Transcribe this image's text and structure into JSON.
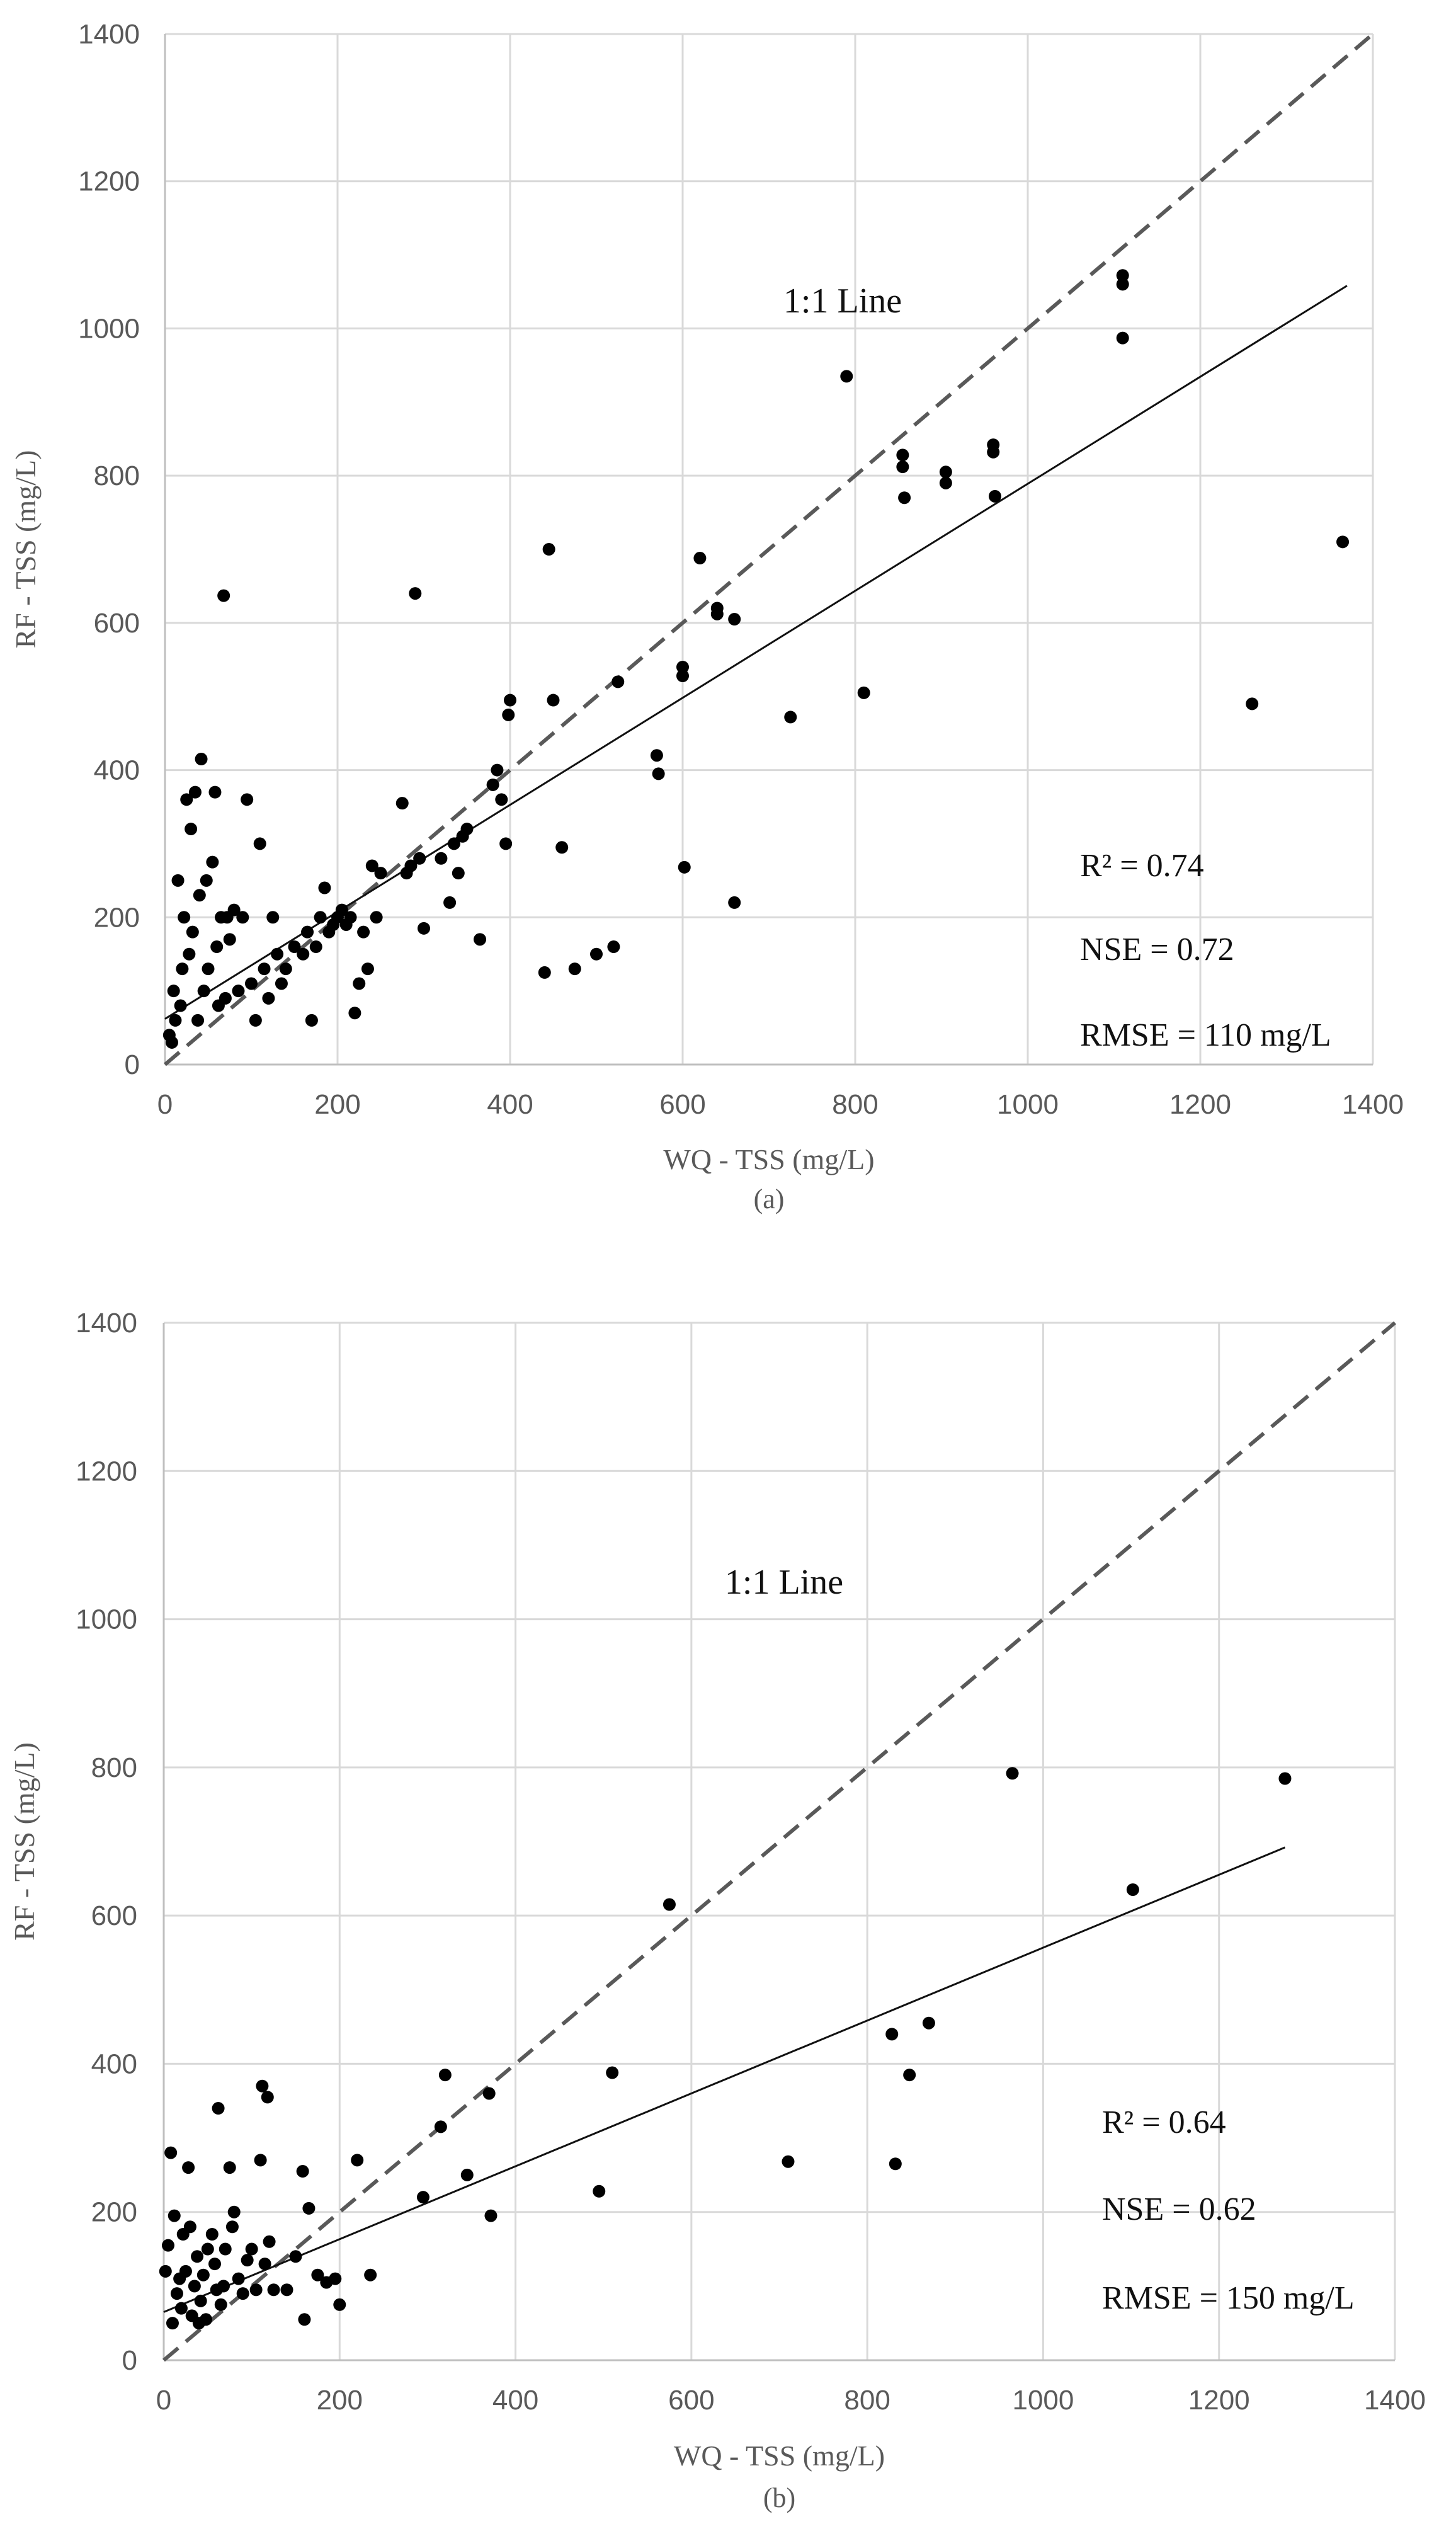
{
  "chart_data": [
    {
      "type": "scatter",
      "panel_label": "(a)",
      "xlabel": "WQ - TSS (mg/L)",
      "ylabel": "RF - TSS (mg/L)",
      "xlim": [
        0,
        1400
      ],
      "ylim": [
        0,
        1400
      ],
      "xticks": [
        0,
        200,
        400,
        600,
        800,
        1000,
        1200,
        1400
      ],
      "yticks": [
        0,
        200,
        400,
        600,
        800,
        1000,
        1200,
        1400
      ],
      "grid": true,
      "one_to_one_label": "1:1 Line",
      "one_to_one_line": {
        "x": [
          0,
          1400
        ],
        "y": [
          0,
          1400
        ],
        "style": "dashed"
      },
      "regression_line": {
        "x": [
          0,
          1370
        ],
        "y": [
          62,
          1058
        ],
        "style": "solid"
      },
      "stats": {
        "r2": "R² = 0.74",
        "nse": "NSE = 0.72",
        "rmse": "RMSE = 110 mg/L"
      },
      "points": [
        [
          5,
          40
        ],
        [
          8,
          30
        ],
        [
          10,
          100
        ],
        [
          12,
          60
        ],
        [
          15,
          250
        ],
        [
          18,
          80
        ],
        [
          20,
          130
        ],
        [
          22,
          200
        ],
        [
          25,
          360
        ],
        [
          28,
          150
        ],
        [
          30,
          320
        ],
        [
          32,
          180
        ],
        [
          35,
          370
        ],
        [
          38,
          60
        ],
        [
          40,
          230
        ],
        [
          42,
          415
        ],
        [
          45,
          100
        ],
        [
          48,
          250
        ],
        [
          50,
          130
        ],
        [
          55,
          275
        ],
        [
          58,
          370
        ],
        [
          60,
          160
        ],
        [
          62,
          80
        ],
        [
          65,
          200
        ],
        [
          68,
          637
        ],
        [
          70,
          90
        ],
        [
          72,
          200
        ],
        [
          75,
          170
        ],
        [
          80,
          210
        ],
        [
          85,
          100
        ],
        [
          90,
          200
        ],
        [
          95,
          360
        ],
        [
          100,
          110
        ],
        [
          105,
          60
        ],
        [
          110,
          300
        ],
        [
          115,
          130
        ],
        [
          120,
          90
        ],
        [
          125,
          200
        ],
        [
          130,
          150
        ],
        [
          135,
          110
        ],
        [
          140,
          130
        ],
        [
          150,
          160
        ],
        [
          160,
          150
        ],
        [
          165,
          180
        ],
        [
          170,
          60
        ],
        [
          175,
          160
        ],
        [
          180,
          200
        ],
        [
          185,
          240
        ],
        [
          190,
          180
        ],
        [
          195,
          190
        ],
        [
          200,
          200
        ],
        [
          205,
          210
        ],
        [
          210,
          190
        ],
        [
          215,
          200
        ],
        [
          220,
          70
        ],
        [
          225,
          110
        ],
        [
          230,
          180
        ],
        [
          235,
          130
        ],
        [
          240,
          270
        ],
        [
          245,
          200
        ],
        [
          250,
          260
        ],
        [
          275,
          355
        ],
        [
          280,
          260
        ],
        [
          285,
          270
        ],
        [
          290,
          640
        ],
        [
          295,
          280
        ],
        [
          300,
          185
        ],
        [
          320,
          280
        ],
        [
          330,
          220
        ],
        [
          335,
          300
        ],
        [
          340,
          260
        ],
        [
          345,
          310
        ],
        [
          350,
          320
        ],
        [
          365,
          170
        ],
        [
          380,
          380
        ],
        [
          385,
          400
        ],
        [
          390,
          360
        ],
        [
          395,
          300
        ],
        [
          398,
          475
        ],
        [
          400,
          495
        ],
        [
          440,
          125
        ],
        [
          445,
          700
        ],
        [
          450,
          495
        ],
        [
          460,
          295
        ],
        [
          475,
          130
        ],
        [
          500,
          150
        ],
        [
          520,
          160
        ],
        [
          525,
          520
        ],
        [
          570,
          420
        ],
        [
          572,
          395
        ],
        [
          600,
          540
        ],
        [
          600,
          528
        ],
        [
          602,
          268
        ],
        [
          620,
          688
        ],
        [
          640,
          620
        ],
        [
          640,
          612
        ],
        [
          660,
          605
        ],
        [
          660,
          220
        ],
        [
          725,
          472
        ],
        [
          790,
          935
        ],
        [
          810,
          505
        ],
        [
          855,
          828
        ],
        [
          855,
          812
        ],
        [
          857,
          770
        ],
        [
          905,
          805
        ],
        [
          905,
          790
        ],
        [
          960,
          842
        ],
        [
          960,
          832
        ],
        [
          962,
          772
        ],
        [
          1110,
          1072
        ],
        [
          1110,
          1060
        ],
        [
          1110,
          987
        ],
        [
          1260,
          490
        ],
        [
          1365,
          710
        ]
      ]
    },
    {
      "type": "scatter",
      "panel_label": "(b)",
      "xlabel": "WQ - TSS (mg/L)",
      "ylabel": "RF - TSS (mg/L)",
      "xlim": [
        0,
        1400
      ],
      "ylim": [
        0,
        1400
      ],
      "xticks": [
        0,
        200,
        400,
        600,
        800,
        1000,
        1200,
        1400
      ],
      "yticks": [
        0,
        200,
        400,
        600,
        800,
        1000,
        1200,
        1400
      ],
      "grid": true,
      "one_to_one_label": "1:1 Line",
      "one_to_one_line": {
        "x": [
          0,
          1400
        ],
        "y": [
          0,
          1400
        ],
        "style": "dashed"
      },
      "regression_line": {
        "x": [
          0,
          1275
        ],
        "y": [
          65,
          692
        ],
        "style": "solid"
      },
      "stats": {
        "r2": "R² = 0.64",
        "nse": "NSE = 0.62",
        "rmse": "RMSE = 150 mg/L"
      },
      "points": [
        [
          2,
          120
        ],
        [
          5,
          155
        ],
        [
          8,
          280
        ],
        [
          10,
          50
        ],
        [
          12,
          195
        ],
        [
          15,
          90
        ],
        [
          18,
          110
        ],
        [
          20,
          70
        ],
        [
          22,
          170
        ],
        [
          25,
          120
        ],
        [
          28,
          260
        ],
        [
          30,
          180
        ],
        [
          32,
          60
        ],
        [
          35,
          100
        ],
        [
          38,
          140
        ],
        [
          40,
          50
        ],
        [
          42,
          80
        ],
        [
          45,
          115
        ],
        [
          48,
          55
        ],
        [
          50,
          150
        ],
        [
          55,
          170
        ],
        [
          58,
          130
        ],
        [
          60,
          95
        ],
        [
          62,
          340
        ],
        [
          65,
          75
        ],
        [
          68,
          100
        ],
        [
          70,
          150
        ],
        [
          75,
          260
        ],
        [
          78,
          180
        ],
        [
          80,
          200
        ],
        [
          85,
          110
        ],
        [
          90,
          90
        ],
        [
          95,
          135
        ],
        [
          100,
          150
        ],
        [
          105,
          95
        ],
        [
          110,
          270
        ],
        [
          112,
          370
        ],
        [
          115,
          130
        ],
        [
          118,
          355
        ],
        [
          120,
          160
        ],
        [
          125,
          95
        ],
        [
          140,
          95
        ],
        [
          150,
          140
        ],
        [
          158,
          255
        ],
        [
          160,
          55
        ],
        [
          165,
          205
        ],
        [
          175,
          115
        ],
        [
          185,
          105
        ],
        [
          195,
          110
        ],
        [
          200,
          75
        ],
        [
          220,
          270
        ],
        [
          235,
          115
        ],
        [
          295,
          220
        ],
        [
          315,
          315
        ],
        [
          320,
          385
        ],
        [
          345,
          250
        ],
        [
          370,
          360
        ],
        [
          372,
          195
        ],
        [
          495,
          228
        ],
        [
          510,
          388
        ],
        [
          575,
          615
        ],
        [
          710,
          268
        ],
        [
          828,
          440
        ],
        [
          832,
          265
        ],
        [
          848,
          385
        ],
        [
          870,
          455
        ],
        [
          965,
          792
        ],
        [
          1102,
          635
        ],
        [
          1275,
          785
        ]
      ]
    }
  ]
}
